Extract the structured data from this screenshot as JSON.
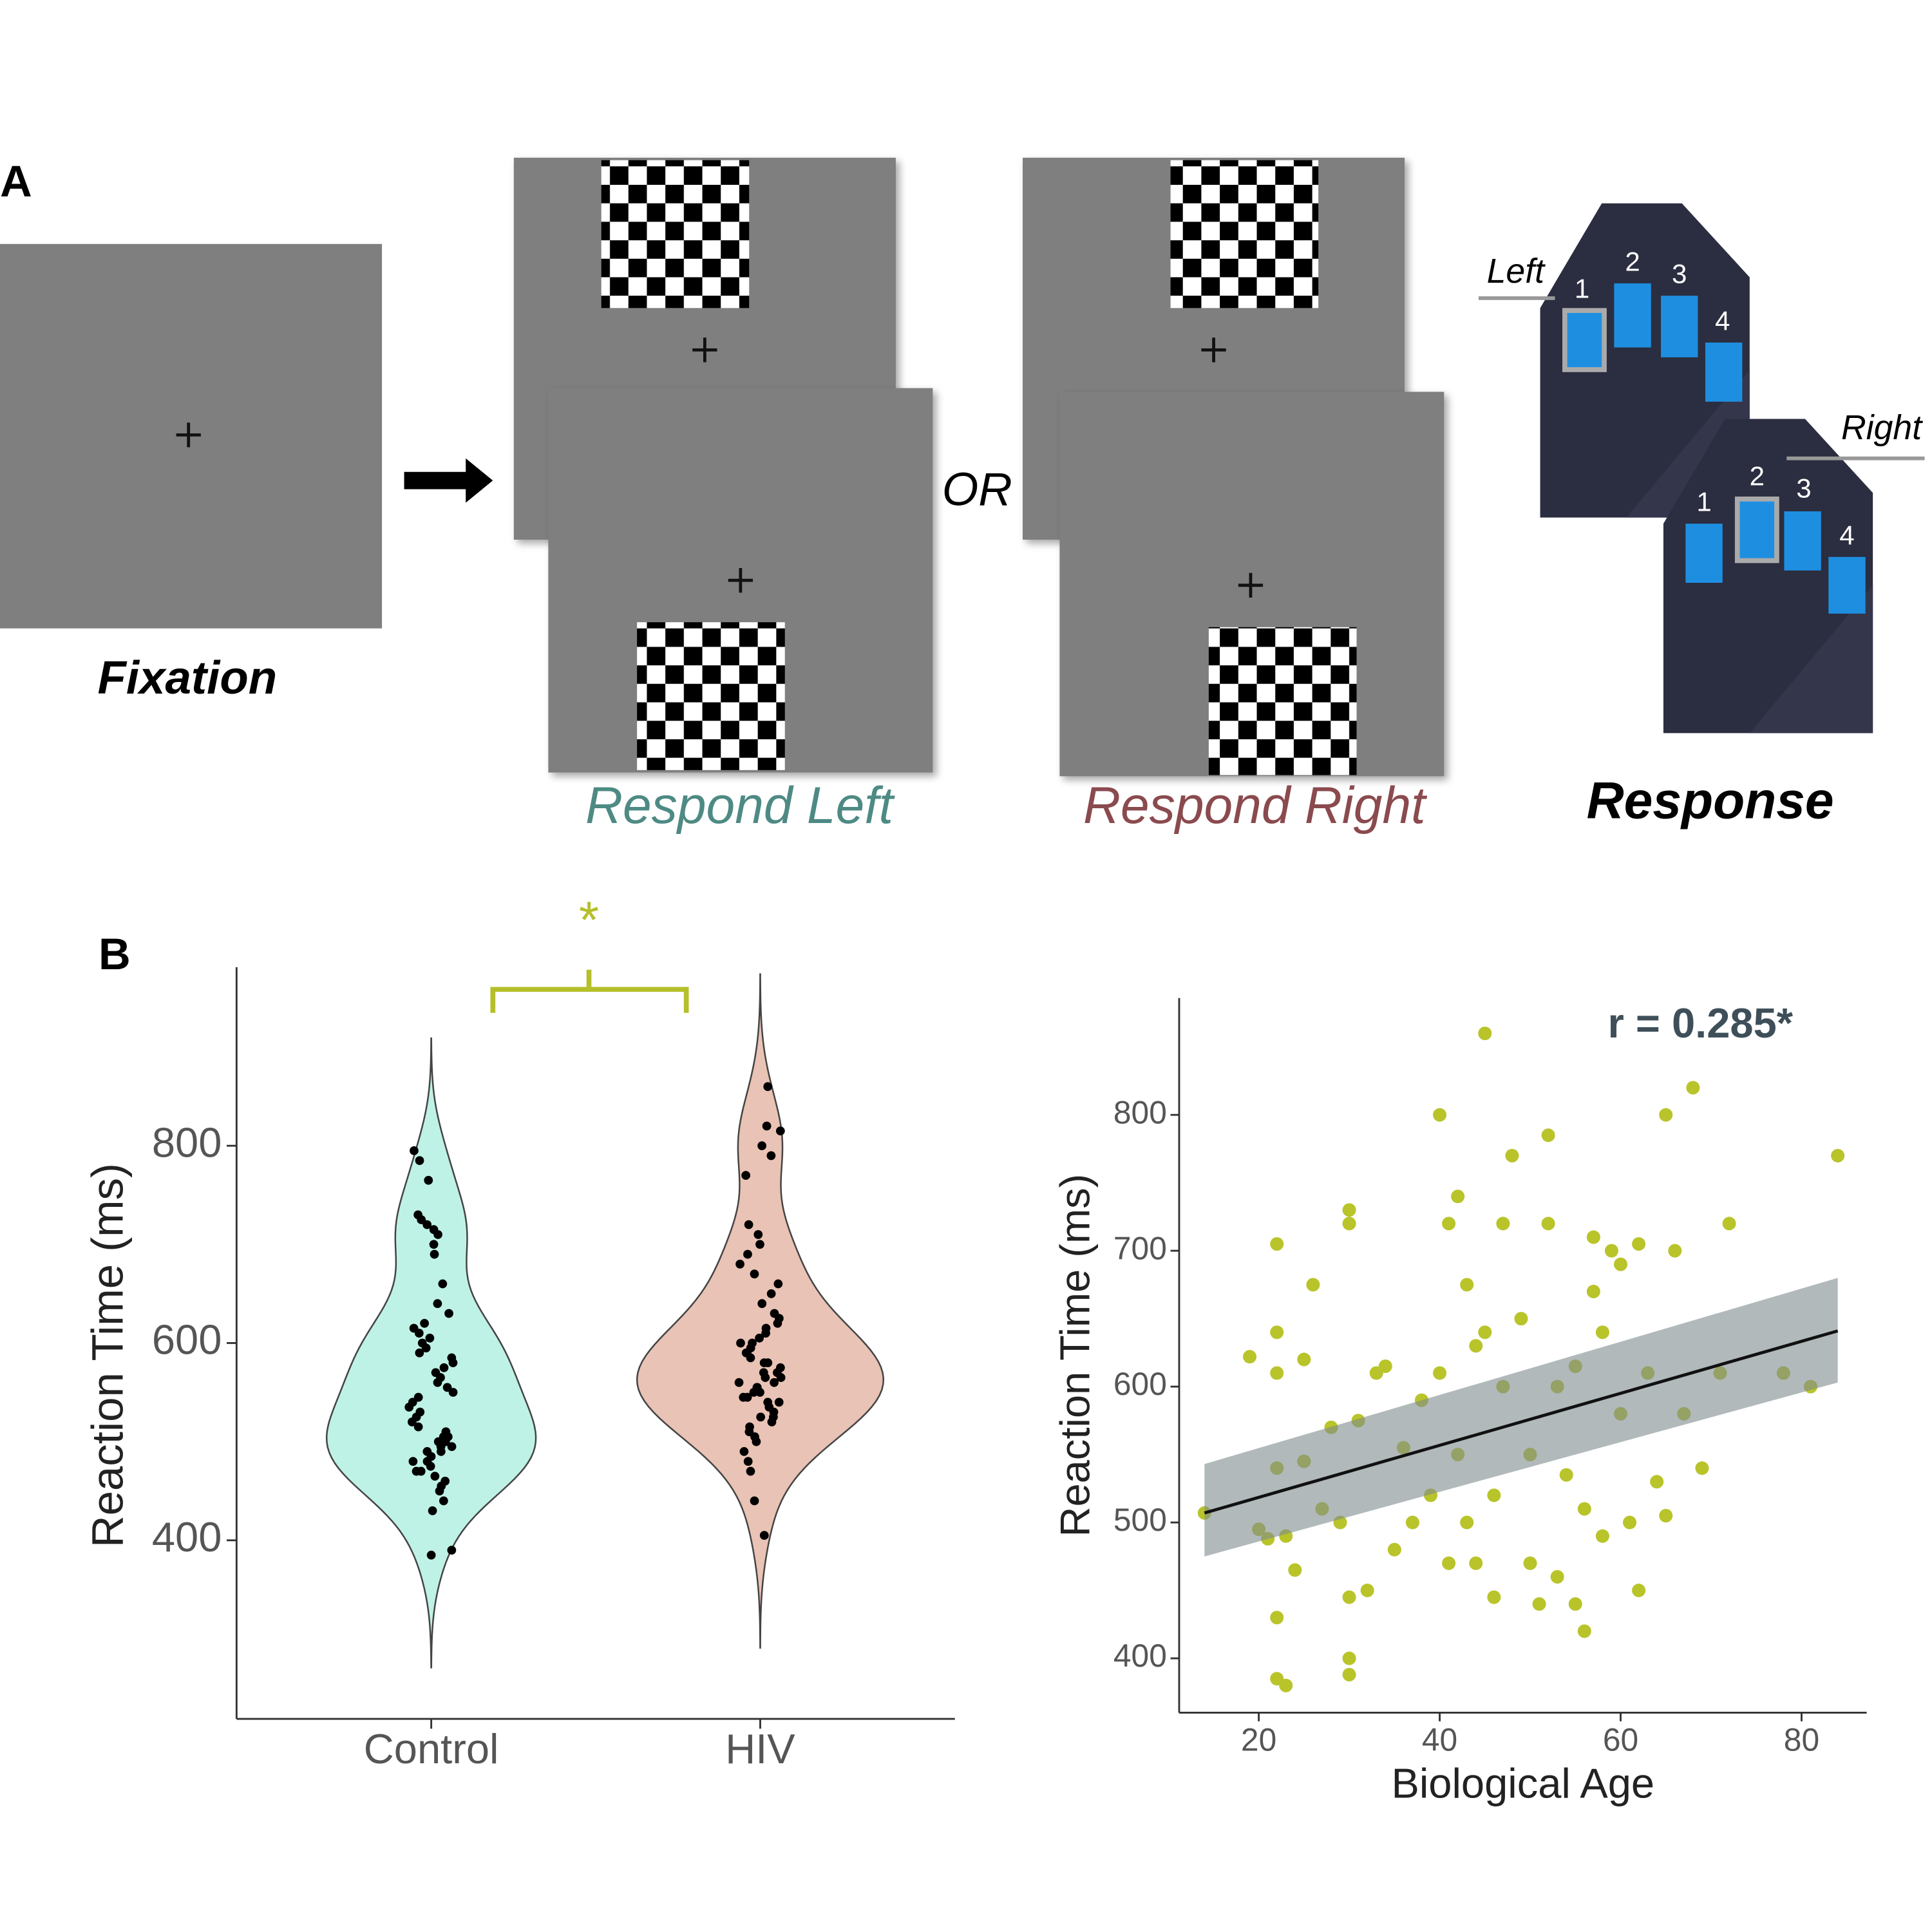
{
  "panel_a": {
    "label": "A",
    "fixation": "Fixation",
    "or": "OR",
    "respond_left": "Respond Left",
    "respond_right": "Respond Right",
    "response": "Response",
    "left": "Left",
    "right": "Right",
    "keys": [
      "1",
      "2",
      "3",
      "4"
    ]
  },
  "panel_b_label": "B",
  "chart_data": [
    {
      "type": "violin",
      "ylabel": "Reaction Time (ms)",
      "categories": [
        "Control",
        "HIV"
      ],
      "groups": [
        {
          "color": "#bff2e6",
          "values": [
            385,
            390,
            430,
            440,
            450,
            455,
            460,
            465,
            470,
            470,
            475,
            480,
            480,
            485,
            490,
            490,
            495,
            495,
            500,
            500,
            505,
            505,
            510,
            515,
            520,
            525,
            530,
            535,
            540,
            545,
            550,
            555,
            560,
            565,
            570,
            575,
            580,
            585,
            590,
            595,
            600,
            605,
            610,
            615,
            620,
            630,
            640,
            660,
            690,
            700,
            710,
            715,
            720,
            725,
            730,
            765,
            785,
            795
          ]
        },
        {
          "color": "#e9c3b5",
          "values": [
            405,
            440,
            470,
            480,
            490,
            500,
            505,
            510,
            515,
            520,
            525,
            525,
            530,
            535,
            540,
            540,
            545,
            545,
            550,
            550,
            555,
            555,
            560,
            560,
            565,
            565,
            570,
            570,
            575,
            580,
            580,
            585,
            590,
            590,
            595,
            600,
            600,
            605,
            610,
            615,
            620,
            625,
            630,
            640,
            650,
            660,
            670,
            680,
            690,
            700,
            710,
            720,
            770,
            790,
            800,
            815,
            820,
            860
          ]
        }
      ],
      "ylim": [
        219,
        981
      ],
      "yticks": [
        400,
        600,
        800
      ],
      "significance": "*",
      "significance_color": "#b5bf2a"
    },
    {
      "type": "scatter",
      "xlabel": "Biological Age",
      "ylabel": "Reaction Time (ms)",
      "annotation": "r = 0.285*",
      "color": "#b9c42a",
      "x": [
        14,
        19,
        20,
        21,
        22,
        22,
        22,
        22,
        22,
        22,
        23,
        23,
        24,
        25,
        25,
        26,
        27,
        28,
        29,
        30,
        30,
        30,
        30,
        30,
        31,
        32,
        33,
        34,
        35,
        36,
        37,
        38,
        39,
        40,
        40,
        41,
        41,
        42,
        42,
        43,
        43,
        44,
        44,
        45,
        45,
        46,
        46,
        47,
        47,
        48,
        49,
        50,
        50,
        51,
        52,
        52,
        53,
        53,
        54,
        55,
        55,
        56,
        56,
        57,
        57,
        58,
        58,
        59,
        60,
        60,
        61,
        62,
        62,
        63,
        64,
        65,
        65,
        66,
        67,
        68,
        69,
        71,
        72,
        78,
        81,
        84
      ],
      "y": [
        507,
        622,
        495,
        488,
        705,
        640,
        610,
        540,
        430,
        385,
        490,
        380,
        465,
        620,
        545,
        675,
        510,
        570,
        500,
        730,
        720,
        445,
        400,
        388,
        575,
        450,
        610,
        615,
        480,
        555,
        500,
        590,
        520,
        800,
        610,
        720,
        470,
        740,
        550,
        675,
        500,
        630,
        470,
        860,
        640,
        445,
        520,
        600,
        720,
        770,
        650,
        470,
        550,
        440,
        720,
        785,
        600,
        460,
        535,
        440,
        615,
        420,
        510,
        710,
        670,
        640,
        490,
        700,
        690,
        580,
        500,
        705,
        450,
        610,
        530,
        800,
        505,
        700,
        580,
        820,
        540,
        610,
        720,
        610,
        600,
        770
      ],
      "fit": {
        "x": [
          14,
          84
        ],
        "y": [
          507,
          641
        ],
        "lower": [
          475,
          603
        ],
        "upper": [
          543,
          680
        ]
      },
      "xlim": [
        11.2,
        87.2
      ],
      "ylim": [
        360,
        886
      ],
      "xticks": [
        20,
        40,
        60,
        80
      ],
      "yticks": [
        400,
        500,
        600,
        700,
        800
      ]
    }
  ]
}
